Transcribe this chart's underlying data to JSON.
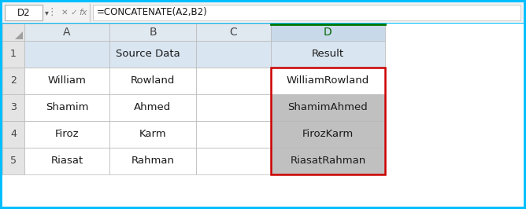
{
  "formula_bar_cell": "D2",
  "formula_bar_formula": "=CONCATENATE(A2,B2)",
  "col_headers": [
    "A",
    "B",
    "C",
    "D"
  ],
  "row_numbers": [
    "1",
    "2",
    "3",
    "4",
    "5"
  ],
  "header_row_text": "Source Data",
  "result_header_text": "Result",
  "data_rows": [
    [
      "William",
      "Rowland",
      "",
      "WilliamRowland"
    ],
    [
      "Shamim",
      "Ahmed",
      "",
      "ShamimAhmed"
    ],
    [
      "Firoz",
      "Karm",
      "",
      "FirozKarm"
    ],
    [
      "Riasat",
      "Rahman",
      "",
      "RiasatRahman"
    ]
  ],
  "outer_border_color": "#00bfff",
  "red_border_color": "#cc0000",
  "green_top_border_color": "#007700",
  "grid_color": "#b8b8b8",
  "formula_bar_bg": "#f2f2f2",
  "header_col_bg": "#d9e5f0",
  "header_row_bg": "#d9e5f0",
  "col_header_bg": "#e0e8f0",
  "col_d_header_bg": "#c8daea",
  "row_num_bg": "#e8e8e8",
  "triangle_bg": "#a8a8a8",
  "cell_white": "#ffffff",
  "cell_gray": "#c0c0c0",
  "text_dark": "#1a1a1a",
  "text_gray": "#666666",
  "font_size_data": 9.5,
  "font_size_header_col": 10,
  "font_size_formula": 8.5,
  "font_size_rownum": 9
}
